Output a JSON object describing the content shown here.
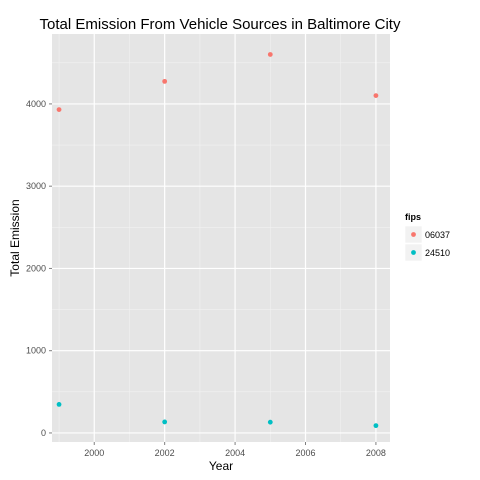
{
  "chart_data": {
    "type": "scatter",
    "title": "Total Emission From Vehicle Sources in Baltimore City",
    "xlabel": "Year",
    "ylabel": "Total Emission",
    "xlim": [
      1998.8,
      2008.4
    ],
    "ylim": [
      -110,
      4850
    ],
    "xticks": [
      2000,
      2002,
      2004,
      2006,
      2008
    ],
    "yticks": [
      0,
      1000,
      2000,
      3000,
      4000
    ],
    "grid": true,
    "legend": {
      "title": "fips",
      "placement": "right"
    },
    "series": [
      {
        "name": "06037",
        "color": "#F8766D",
        "points": [
          {
            "x": 1999,
            "y": 3931
          },
          {
            "x": 2002,
            "y": 4274
          },
          {
            "x": 2005,
            "y": 4601
          },
          {
            "x": 2008,
            "y": 4101
          }
        ]
      },
      {
        "name": "24510",
        "color": "#00BFC4",
        "points": [
          {
            "x": 1999,
            "y": 347
          },
          {
            "x": 2002,
            "y": 134
          },
          {
            "x": 2005,
            "y": 131
          },
          {
            "x": 2008,
            "y": 89
          }
        ]
      }
    ]
  }
}
